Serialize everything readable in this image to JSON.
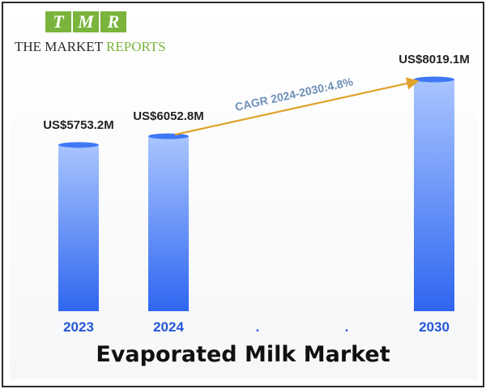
{
  "logo": {
    "letters": [
      "T",
      "M",
      "R"
    ],
    "text_dark": "THE MARKET ",
    "text_green": "REPORTS"
  },
  "chart_data": {
    "type": "bar",
    "title": "Evaporated Milk Market",
    "categories": [
      "2023",
      "2024",
      ".",
      ".",
      "2030"
    ],
    "values": [
      5753.2,
      6052.8,
      null,
      null,
      8019.1
    ],
    "data_labels": [
      "US$5753.2M",
      "US$6052.8M",
      "",
      "",
      "US$8019.1M"
    ],
    "annotation": {
      "text": "CAGR 2024-2030:4.8%",
      "from": "2024",
      "to": "2030"
    },
    "colors": {
      "bar_top": "#a9c5ff",
      "bar_bottom": "#2f66f0",
      "bar_cap": "#3f78f5",
      "tick_label": "#2457d6",
      "arrow": "#e0a22a",
      "annotation_text": "#6f8fb8"
    }
  }
}
